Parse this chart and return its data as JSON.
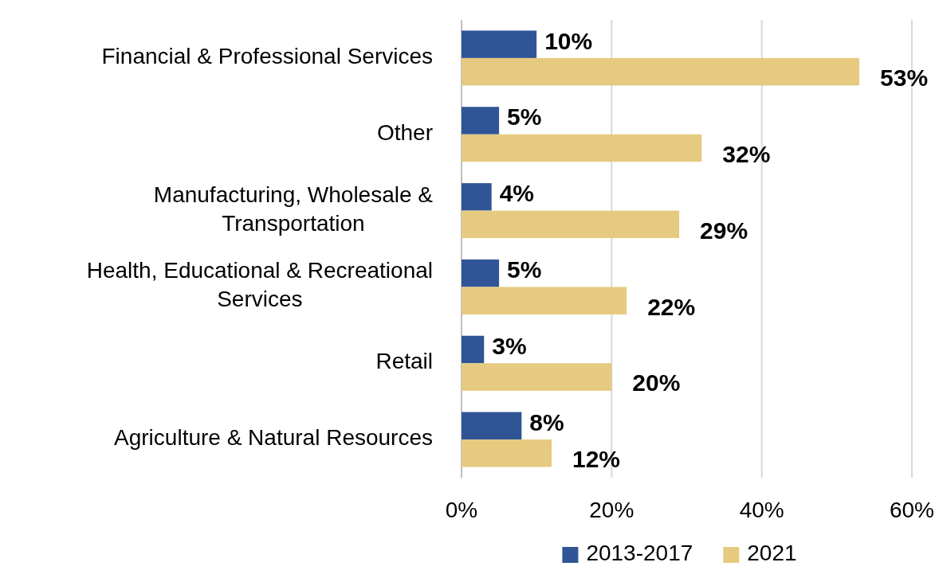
{
  "chart_data": {
    "type": "bar",
    "orientation": "horizontal",
    "categories": [
      "Financial & Professional Services",
      "Other",
      "Manufacturing, Wholesale & Transportation",
      "Health, Educational & Recreational Services",
      "Retail",
      "Agriculture & Natural Resources"
    ],
    "series": [
      {
        "name": "2013-2017",
        "color": "#2f5597",
        "values": [
          10,
          5,
          4,
          5,
          3,
          8
        ],
        "value_labels": [
          "10%",
          "5%",
          "4%",
          "5%",
          "3%",
          "8%"
        ]
      },
      {
        "name": "2021",
        "color": "#e6ca7f",
        "values": [
          53,
          32,
          29,
          22,
          20,
          12
        ],
        "value_labels": [
          "53%",
          "32%",
          "29%",
          "22%",
          "20%",
          "12%"
        ]
      }
    ],
    "xlim": [
      0,
      60
    ],
    "xticks": [
      {
        "value": 0,
        "label": "0%"
      },
      {
        "value": 20,
        "label": "20%"
      },
      {
        "value": 40,
        "label": "40%"
      },
      {
        "value": 60,
        "label": "60%"
      }
    ],
    "grid": "x",
    "legend": "bottom"
  }
}
